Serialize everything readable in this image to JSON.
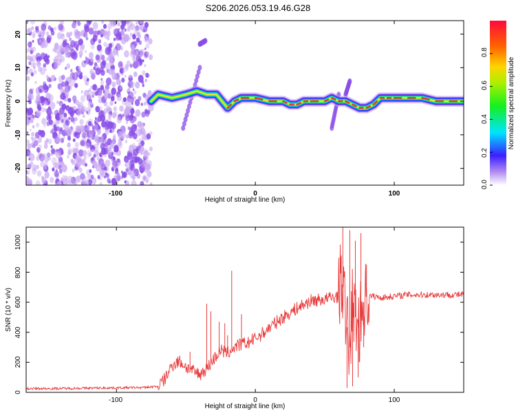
{
  "title": "S206.2026.053.19.46.G28",
  "colors": {
    "noise": "#8a4ee8",
    "noise_light": "#c9a9f2",
    "ridge_core": "#e8393a",
    "snr_line": "#e8393a"
  },
  "chart_data": [
    {
      "type": "heatmap",
      "title": "S206.2026.053.19.46.G28",
      "xlabel": "Height of straight line (km)",
      "ylabel": "Frequency (Hz)",
      "xlim": [
        -165,
        150
      ],
      "ylim": [
        -25,
        24
      ],
      "xticks": [
        -100,
        0,
        100
      ],
      "xtick_labels": [
        "-100",
        "0",
        "100"
      ],
      "yticks": [
        -20,
        -10,
        0,
        10,
        20
      ],
      "ytick_labels": [
        "-20",
        "-10",
        "0",
        "10",
        "20"
      ],
      "noise_region_x": [
        -165,
        -75
      ],
      "ridge": {
        "description": "frequency ridge of spectral maximum",
        "x": [
          -75,
          -70,
          -60,
          -50,
          -42,
          -35,
          -28,
          -24,
          -20,
          -15,
          -10,
          0,
          10,
          20,
          25,
          30,
          35,
          40,
          50,
          55,
          60,
          65,
          70,
          75,
          80,
          85,
          90,
          95,
          100,
          110,
          120,
          130,
          140,
          150
        ],
        "y": [
          0,
          2,
          1,
          2,
          3,
          2,
          2,
          0,
          -2,
          0,
          1,
          1,
          0,
          0,
          -1,
          -1,
          0,
          0,
          0,
          1,
          0,
          0,
          -1,
          -2,
          -2,
          -1,
          1,
          1,
          1,
          1,
          1,
          0,
          0,
          0
        ]
      },
      "streaks": [
        {
          "x": [
            -52,
            -40
          ],
          "y": [
            -8,
            10
          ]
        },
        {
          "x": [
            -40,
            -36
          ],
          "y": [
            17,
            18
          ]
        },
        {
          "x": [
            55,
            60
          ],
          "y": [
            -8,
            2
          ]
        },
        {
          "x": [
            65,
            68
          ],
          "y": [
            2,
            6
          ]
        }
      ]
    },
    {
      "type": "colorbar",
      "label": "Normalized spectral amplitude",
      "range": [
        0.0,
        1.0
      ],
      "ticks": [
        0.0,
        0.2,
        0.4,
        0.6,
        0.8
      ],
      "tick_labels": [
        "0.0",
        "0.2",
        "0.4",
        "0.6",
        "0.8"
      ]
    },
    {
      "type": "line",
      "xlabel": "Height of straight line (km)",
      "ylabel": "SNR (10 * v/v)",
      "xlim": [
        -165,
        150
      ],
      "ylim": [
        0,
        1100
      ],
      "xticks": [
        -100,
        0,
        100
      ],
      "xtick_labels": [
        "-100",
        "0",
        "100"
      ],
      "yticks": [
        0,
        200,
        400,
        600,
        800,
        1000
      ],
      "ytick_labels": [
        "0",
        "200",
        "400",
        "600",
        "800",
        "1000"
      ],
      "series": [
        {
          "name": "SNR",
          "x": [
            -165,
            -150,
            -120,
            -100,
            -80,
            -70,
            -65,
            -60,
            -55,
            -50,
            -45,
            -40,
            -35,
            -30,
            -25,
            -20,
            -15,
            -10,
            -5,
            0,
            5,
            10,
            20,
            30,
            40,
            50,
            55,
            60,
            62,
            65,
            68,
            70,
            72,
            75,
            78,
            80,
            85,
            90,
            100,
            110,
            120,
            130,
            140,
            150
          ],
          "y": [
            25,
            25,
            28,
            30,
            32,
            40,
            90,
            180,
            210,
            170,
            140,
            120,
            160,
            220,
            280,
            260,
            300,
            320,
            330,
            360,
            390,
            430,
            500,
            560,
            610,
            620,
            630,
            640,
            800,
            500,
            300,
            600,
            500,
            450,
            600,
            640,
            640,
            630,
            640,
            650,
            650,
            650,
            650,
            650
          ],
          "spikes": [
            {
              "x": -47,
              "y": 270
            },
            {
              "x": -35,
              "y": 590
            },
            {
              "x": -32,
              "y": 540
            },
            {
              "x": -26,
              "y": 470
            },
            {
              "x": -22,
              "y": 460
            },
            {
              "x": -20,
              "y": 380
            },
            {
              "x": -17,
              "y": 810
            },
            {
              "x": -10,
              "y": 520
            },
            {
              "x": 63,
              "y": 1100
            },
            {
              "x": 66,
              "y": 30
            },
            {
              "x": 68,
              "y": 1080
            },
            {
              "x": 70,
              "y": 40
            },
            {
              "x": 72,
              "y": 1010
            },
            {
              "x": 74,
              "y": 100
            },
            {
              "x": 76,
              "y": 1060
            },
            {
              "x": 78,
              "y": 300
            },
            {
              "x": 80,
              "y": 850
            }
          ]
        }
      ]
    }
  ]
}
